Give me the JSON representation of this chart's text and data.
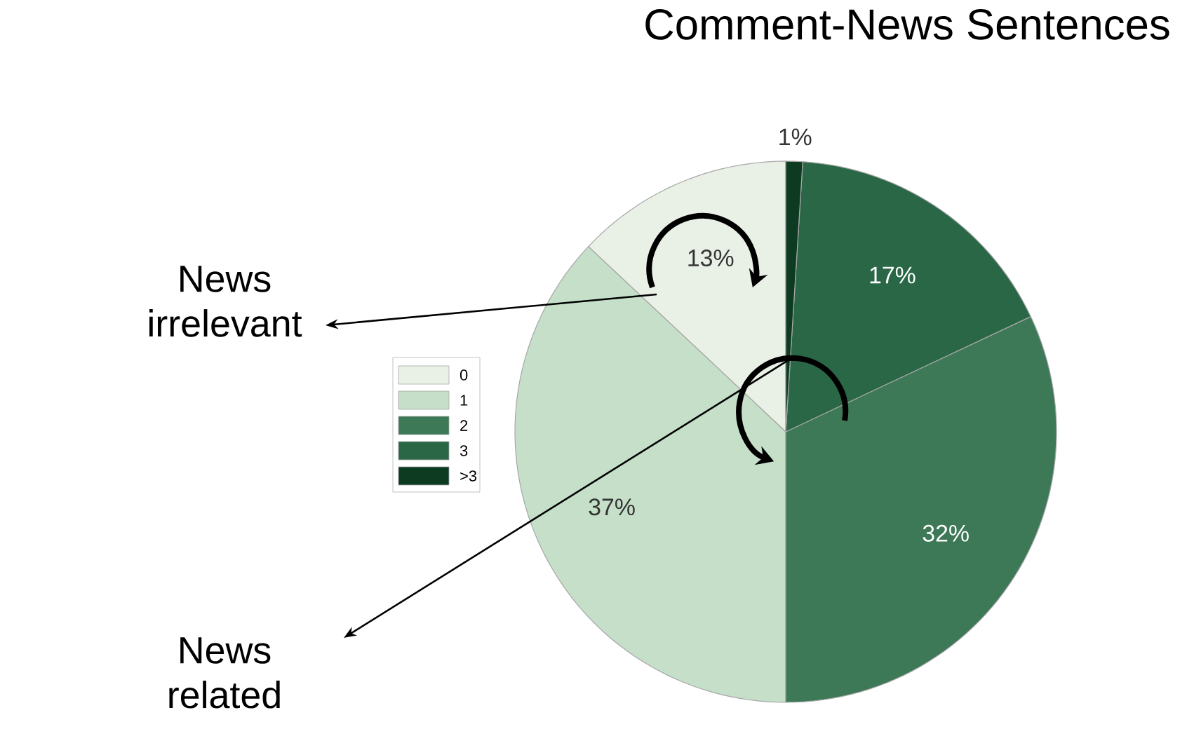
{
  "chart_data": {
    "type": "pie",
    "title": "Comment-News Sentences",
    "categories": [
      "0",
      "1",
      "2",
      "3",
      ">3"
    ],
    "values": [
      13,
      37,
      32,
      17,
      1
    ],
    "colors": [
      "#e9f1e7",
      "#c5dfc8",
      "#3d7857",
      "#2a6747",
      "#0d3b22"
    ],
    "value_labels": [
      "13%",
      "37%",
      "32%",
      "17%",
      "1%"
    ],
    "legend": "left",
    "annotations": [
      "News irrelevant",
      "News related"
    ]
  }
}
